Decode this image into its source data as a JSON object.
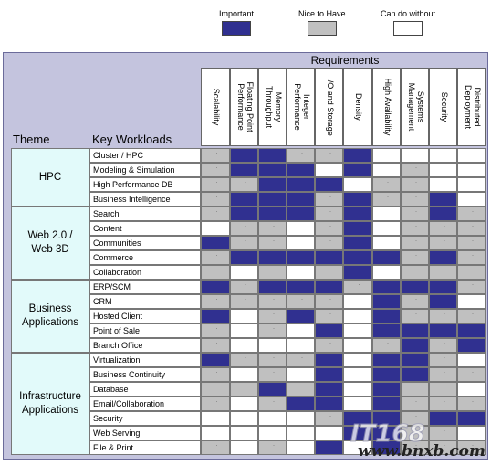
{
  "legend": {
    "important": {
      "label": "Important",
      "color": "#303090"
    },
    "nice": {
      "label": "Nice to Have",
      "color": "#c0c0c0"
    },
    "can": {
      "label": "Can do without",
      "color": "#ffffff"
    }
  },
  "chart_data": {
    "type": "table",
    "title": "Requirements",
    "row_header_theme": "Theme",
    "row_header_workload": "Key Workloads",
    "columns": [
      "Scalability",
      "Floating Point Performance",
      "Memory Throughput",
      "Integer Performance",
      "I/O and Storage",
      "Density",
      "High Availability",
      "Systems Management",
      "Security",
      "Distributed Deployment"
    ],
    "column_lines": [
      [
        "Scalability"
      ],
      [
        "Floating Point",
        "Performance"
      ],
      [
        "Memory",
        "Throughput"
      ],
      [
        "Integer",
        "Performance"
      ],
      [
        "I/O and Storage"
      ],
      [
        "Density"
      ],
      [
        "High Availability"
      ],
      [
        "Systems",
        "Management"
      ],
      [
        "Security"
      ],
      [
        "Distributed",
        "Deployment"
      ]
    ],
    "themes": [
      {
        "lines": [
          "HPC"
        ],
        "rows": 4
      },
      {
        "lines": [
          "Web 2.0 /",
          "Web 3D"
        ],
        "rows": 5
      },
      {
        "lines": [
          "Business",
          "Applications"
        ],
        "rows": 5
      },
      {
        "lines": [
          "Infrastructure",
          "Applications"
        ],
        "rows": 7
      }
    ],
    "workloads": [
      "Cluster / HPC",
      "Modeling & Simulation",
      "High Performance DB",
      "Business Intelligence",
      "Search",
      "Content",
      "Communities",
      "Commerce",
      "Collaboration",
      "ERP/SCM",
      "CRM",
      "Hosted Client",
      "Point of Sale",
      "Branch Office",
      "Virtualization",
      "Business Continuity",
      "Database",
      "Email/Collaboration",
      "Security",
      "Web Serving",
      "File & Print"
    ],
    "values": [
      [
        "N",
        "I",
        "I",
        "N",
        "N",
        "I",
        "C",
        "C",
        "C",
        "C"
      ],
      [
        "N",
        "I",
        "I",
        "I",
        "C",
        "I",
        "C",
        "N",
        "C",
        "C"
      ],
      [
        "N",
        "N",
        "I",
        "I",
        "I",
        "C",
        "N",
        "N",
        "C",
        "C"
      ],
      [
        "N",
        "I",
        "I",
        "I",
        "N",
        "I",
        "N",
        "N",
        "I",
        "C"
      ],
      [
        "N",
        "I",
        "I",
        "I",
        "N",
        "I",
        "C",
        "N",
        "I",
        "N"
      ],
      [
        "C",
        "N",
        "N",
        "C",
        "N",
        "I",
        "C",
        "N",
        "N",
        "N"
      ],
      [
        "I",
        "N",
        "N",
        "C",
        "N",
        "I",
        "C",
        "N",
        "N",
        "N"
      ],
      [
        "N",
        "I",
        "I",
        "I",
        "I",
        "I",
        "I",
        "N",
        "I",
        "N"
      ],
      [
        "N",
        "C",
        "N",
        "C",
        "N",
        "I",
        "C",
        "N",
        "N",
        "N"
      ],
      [
        "I",
        "N",
        "I",
        "I",
        "I",
        "N",
        "I",
        "I",
        "I",
        "N"
      ],
      [
        "N",
        "N",
        "N",
        "N",
        "N",
        "C",
        "I",
        "N",
        "I",
        "C"
      ],
      [
        "I",
        "C",
        "N",
        "I",
        "N",
        "C",
        "I",
        "N",
        "N",
        "N"
      ],
      [
        "N",
        "C",
        "N",
        "C",
        "I",
        "C",
        "I",
        "I",
        "I",
        "I"
      ],
      [
        "N",
        "C",
        "C",
        "C",
        "N",
        "C",
        "N",
        "I",
        "N",
        "I"
      ],
      [
        "I",
        "N",
        "N",
        "N",
        "I",
        "C",
        "I",
        "I",
        "N",
        "C"
      ],
      [
        "N",
        "C",
        "N",
        "C",
        "I",
        "C",
        "I",
        "I",
        "N",
        "N"
      ],
      [
        "N",
        "N",
        "I",
        "N",
        "I",
        "C",
        "I",
        "N",
        "N",
        "C"
      ],
      [
        "N",
        "C",
        "N",
        "I",
        "I",
        "C",
        "I",
        "N",
        "N",
        "N"
      ],
      [
        "C",
        "C",
        "C",
        "C",
        "N",
        "I",
        "I",
        "N",
        "I",
        "I"
      ],
      [
        "C",
        "C",
        "C",
        "C",
        "C",
        "I",
        "I",
        "N",
        "N",
        "C"
      ],
      [
        "N",
        "C",
        "N",
        "C",
        "I",
        "C",
        "I",
        "N",
        "N",
        "N"
      ]
    ],
    "legend_placement": "top"
  },
  "watermark": "www.bnxb.com"
}
